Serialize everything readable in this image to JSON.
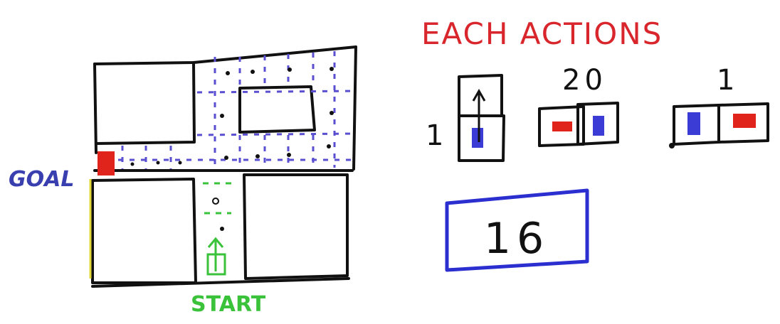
{
  "labels": {
    "goal": "GOAL",
    "start": "START",
    "heading": "EACH ACTIONS",
    "cost_forward": "1",
    "cost_turn": "20",
    "cost_reverse": "1",
    "answer": "16"
  },
  "colors": {
    "ink": "#111111",
    "goal": "#3a3fb0",
    "goal_marker": "#e0241c",
    "start": "#3bc23b",
    "heading": "#d8262c",
    "robot_blue": "#3b3bd6",
    "robot_red": "#e0241c",
    "dashed": "#5a4fd0",
    "answer_box": "#2c2fd0"
  },
  "icons": {
    "start_robot": "upward-arrow-robot-icon",
    "goal_marker": "red-square-icon",
    "forward_action": "up-arrow-icon"
  }
}
